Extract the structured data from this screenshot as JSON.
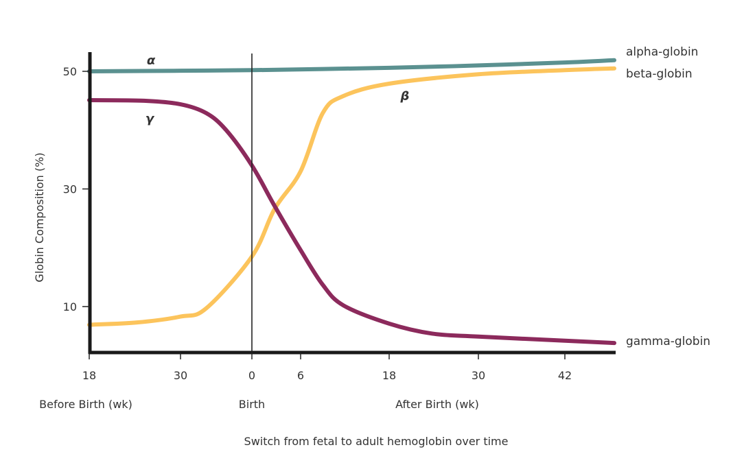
{
  "chart_data": {
    "type": "line",
    "title": "",
    "caption": "Switch from fetal to adult hemoglobin over time",
    "ylabel": "Globin Composition (%)",
    "ylim": [
      2,
      55
    ],
    "yticks": [
      10,
      30,
      50
    ],
    "x_segments": [
      {
        "label": "Before Birth (wk)",
        "ticks": [
          18,
          30
        ]
      },
      {
        "label": "Birth",
        "ticks": [
          0
        ]
      },
      {
        "label": "After Birth (wk)",
        "ticks": [
          6,
          18,
          30,
          42
        ]
      }
    ],
    "grid": false,
    "birth_marker": true,
    "series": [
      {
        "name": "alpha-globin",
        "symbol": "α",
        "color": "#5b9190",
        "before": [
          [
            18,
            50
          ],
          [
            30,
            50.1
          ],
          [
            40,
            50.2
          ]
        ],
        "after": [
          [
            0,
            50.2
          ],
          [
            18,
            50.6
          ],
          [
            30,
            51.0
          ],
          [
            42,
            51.5
          ],
          [
            48.7,
            51.9
          ]
        ]
      },
      {
        "name": "beta-globin",
        "symbol": "β",
        "color": "#fcc45c",
        "before": [
          [
            18,
            6.9
          ],
          [
            24.3,
            7.3
          ],
          [
            30,
            8.3
          ],
          [
            33.6,
            9.7
          ],
          [
            40,
            18.5
          ]
        ],
        "after": [
          [
            0,
            18.5
          ],
          [
            2.8,
            26.6
          ],
          [
            6,
            33
          ],
          [
            9,
            42.9
          ],
          [
            11.8,
            45.8
          ],
          [
            18,
            47.9
          ],
          [
            30,
            49.5
          ],
          [
            42,
            50.2
          ],
          [
            48.7,
            50.5
          ]
        ]
      },
      {
        "name": "gamma-globin",
        "symbol": "γ",
        "color": "#8c2a5c",
        "before": [
          [
            18,
            45.1
          ],
          [
            25.2,
            45
          ],
          [
            30,
            44.4
          ],
          [
            33.6,
            42.9
          ],
          [
            36.4,
            40
          ],
          [
            40,
            34
          ]
        ],
        "after": [
          [
            0,
            34
          ],
          [
            2.8,
            27.1
          ],
          [
            6,
            19.6
          ],
          [
            9,
            13.7
          ],
          [
            11.8,
            10.2
          ],
          [
            18,
            7.1
          ],
          [
            23.8,
            5.4
          ],
          [
            30,
            4.9
          ],
          [
            42,
            4.2
          ],
          [
            48.7,
            3.8
          ]
        ]
      }
    ]
  }
}
